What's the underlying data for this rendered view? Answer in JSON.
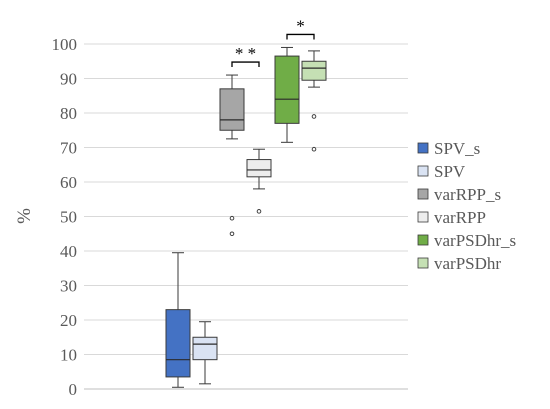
{
  "chart_data": {
    "type": "boxplot",
    "ylabel": "%",
    "ylim": [
      0,
      100
    ],
    "yticks": [
      0,
      10,
      20,
      30,
      40,
      50,
      60,
      70,
      80,
      90,
      100
    ],
    "grid": true,
    "legend_position": "right",
    "series": [
      {
        "name": "SPV_s",
        "color": "#4472c4",
        "min": 0.5,
        "q1": 3.5,
        "median": 8.5,
        "q3": 23.0,
        "max": 39.5,
        "outliers": []
      },
      {
        "name": "SPV",
        "color": "#dae3f3",
        "min": 1.5,
        "q1": 8.5,
        "median": 13.0,
        "q3": 15.0,
        "max": 19.5,
        "outliers": []
      },
      {
        "name": "varRPP_s",
        "color": "#a6a6a6",
        "min": 72.5,
        "q1": 75.0,
        "median": 78.0,
        "q3": 87.0,
        "max": 91.0,
        "outliers": [
          45.0,
          49.5
        ]
      },
      {
        "name": "varRPP",
        "color": "#ededed",
        "min": 58.0,
        "q1": 61.5,
        "median": 63.5,
        "q3": 66.5,
        "max": 69.5,
        "outliers": [
          51.5
        ]
      },
      {
        "name": "varPSDhr_s",
        "color": "#70ad47",
        "min": 71.5,
        "q1": 77.0,
        "median": 84.0,
        "q3": 96.5,
        "max": 99.0,
        "outliers": []
      },
      {
        "name": "varPSDhr",
        "color": "#c5e0b4",
        "min": 87.5,
        "q1": 89.5,
        "median": 93.0,
        "q3": 95.0,
        "max": 98.0,
        "outliers": [
          79.0,
          69.5
        ]
      }
    ],
    "annotations": [
      {
        "text": "* *",
        "between": [
          "varRPP_s",
          "varRPP"
        ]
      },
      {
        "text": "*",
        "between": [
          "varPSDhr_s",
          "varPSDhr"
        ]
      }
    ]
  }
}
